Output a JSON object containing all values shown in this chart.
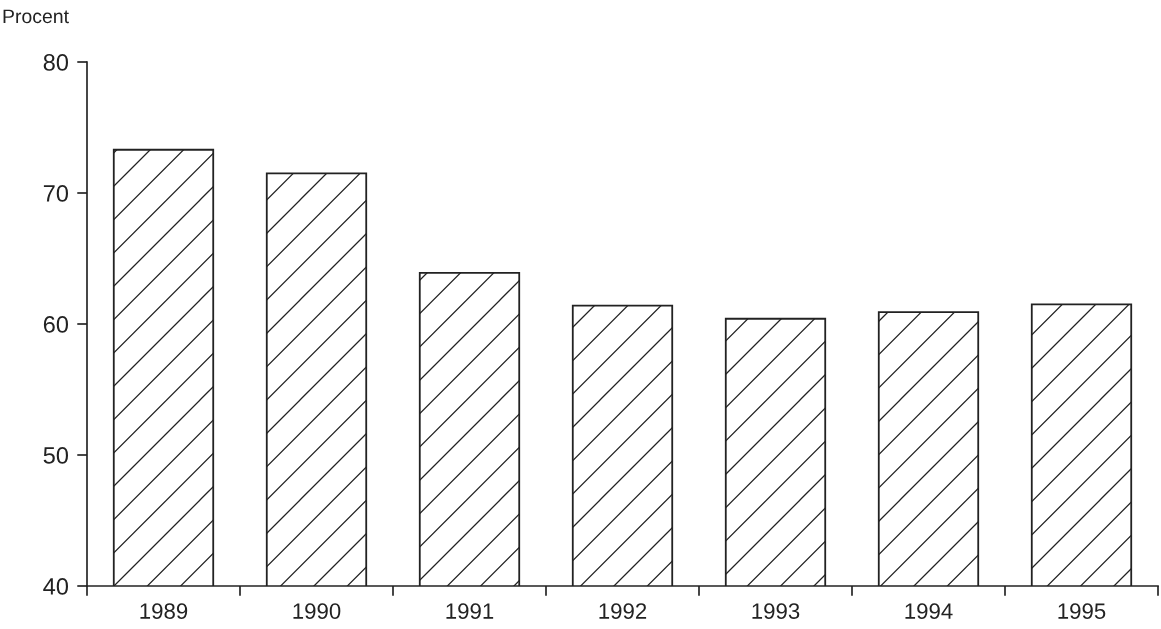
{
  "chart_data": {
    "type": "bar",
    "ylabel": "Procent",
    "categories": [
      "1989",
      "1990",
      "1991",
      "1992",
      "1993",
      "1994",
      "1995"
    ],
    "values": [
      73.3,
      71.5,
      63.9,
      61.4,
      60.4,
      60.9,
      61.5
    ],
    "color": "#222222",
    "ylim": [
      40,
      80
    ],
    "yticks": [
      40,
      50,
      60,
      70,
      80
    ],
    "grid": false,
    "legend": false
  }
}
